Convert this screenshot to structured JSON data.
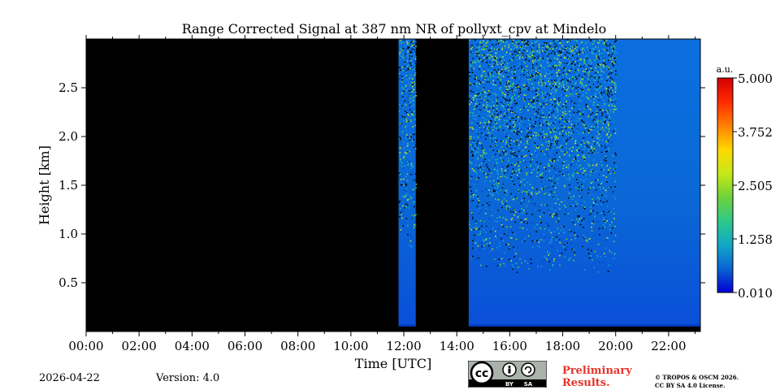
{
  "chart_data": {
    "type": "heatmap",
    "title": "Range Corrected Signal at 387 nm NR of pollyxt_cpv at Mindelo",
    "xlabel": "Time [UTC]",
    "ylabel": "Height [km]",
    "xlim": [
      0,
      23.2
    ],
    "ylim": [
      0,
      3.0
    ],
    "x_ticks": [
      0,
      2,
      4,
      6,
      8,
      10,
      12,
      14,
      16,
      18,
      20,
      22
    ],
    "x_tick_labels": [
      "00:00",
      "02:00",
      "04:00",
      "06:00",
      "08:00",
      "10:00",
      "12:00",
      "14:00",
      "16:00",
      "18:00",
      "20:00",
      "22:00"
    ],
    "y_ticks": [
      0.5,
      1.0,
      1.5,
      2.0,
      2.5
    ],
    "y_tick_labels": [
      "0.5",
      "1.0",
      "1.5",
      "2.0",
      "2.5"
    ],
    "measurement_periods": [
      {
        "start": 11.8,
        "end": 12.45
      },
      {
        "start": 14.45,
        "end": 23.2
      }
    ],
    "noisy_signal_until": 20.0,
    "no_data_color": "#000000",
    "colorbar": {
      "label": "a.u.",
      "min": 0.01,
      "max": 5.0,
      "tick_labels": [
        "5.000",
        "3.752",
        "2.505",
        "1.258",
        "0.010"
      ],
      "colormap": [
        "#0000d4",
        "#0a64d2",
        "#12a8c8",
        "#2ec88a",
        "#6ed23a",
        "#c8e818",
        "#ffd800",
        "#ff8000",
        "#ff2a00",
        "#d40000"
      ]
    }
  },
  "footer": {
    "date": "2026-04-22",
    "version": "Version: 4.0",
    "preliminary": "Preliminary Results.",
    "copyright_line1": "© TROPOS & OSCM 2026.",
    "copyright_line2": "CC BY SA 4.0 License.",
    "license_by": "BY",
    "license_sa": "SA",
    "license_cc": "cc"
  }
}
